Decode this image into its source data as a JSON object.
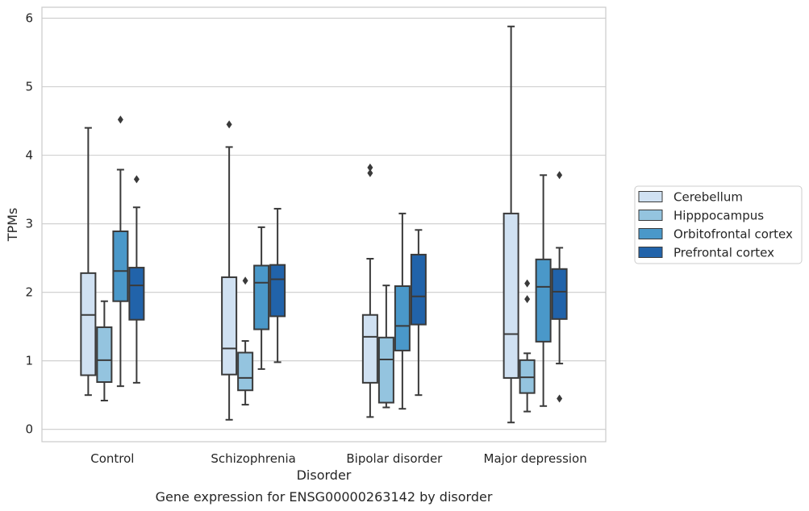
{
  "caption": "Gene expression for ENSG00000263142 by disorder",
  "chart_data": {
    "type": "boxplot",
    "xlabel": "Disorder",
    "ylabel": "TPMs",
    "categories": [
      "Control",
      "Schizophrenia",
      "Bipolar disorder",
      "Major depression"
    ],
    "ylim": [
      -0.18,
      6.16
    ],
    "yticks": [
      "0",
      "1",
      "2",
      "3",
      "4",
      "5",
      "6"
    ],
    "grid": "horizontal",
    "legend_position": "right",
    "series": [
      {
        "name": "Cerebellum",
        "color": "#d0e1f2",
        "boxes": [
          {
            "whisker_low": 0.5,
            "q1": 0.79,
            "median": 1.67,
            "q3": 2.28,
            "whisker_high": 4.4,
            "outliers": []
          },
          {
            "whisker_low": 0.14,
            "q1": 0.8,
            "median": 1.18,
            "q3": 2.22,
            "whisker_high": 4.12,
            "outliers": [
              4.45
            ]
          },
          {
            "whisker_low": 0.18,
            "q1": 0.68,
            "median": 1.35,
            "q3": 1.67,
            "whisker_high": 2.49,
            "outliers": [
              3.74,
              3.82
            ]
          },
          {
            "whisker_low": 0.1,
            "q1": 0.75,
            "median": 1.39,
            "q3": 3.15,
            "whisker_high": 5.88,
            "outliers": []
          }
        ]
      },
      {
        "name": "Hipppocampus",
        "color": "#94c4df",
        "boxes": [
          {
            "whisker_low": 0.42,
            "q1": 0.69,
            "median": 1.01,
            "q3": 1.49,
            "whisker_high": 1.87,
            "outliers": []
          },
          {
            "whisker_low": 0.36,
            "q1": 0.57,
            "median": 0.75,
            "q3": 1.12,
            "whisker_high": 1.29,
            "outliers": [
              2.17
            ]
          },
          {
            "whisker_low": 0.32,
            "q1": 0.39,
            "median": 1.02,
            "q3": 1.34,
            "whisker_high": 2.1,
            "outliers": []
          },
          {
            "whisker_low": 0.26,
            "q1": 0.53,
            "median": 0.76,
            "q3": 1.01,
            "whisker_high": 1.11,
            "outliers": [
              1.9,
              2.13
            ]
          }
        ]
      },
      {
        "name": "Orbitofrontal cortex",
        "color": "#4a98c9",
        "boxes": [
          {
            "whisker_low": 0.63,
            "q1": 1.87,
            "median": 2.31,
            "q3": 2.89,
            "whisker_high": 3.79,
            "outliers": [
              4.52
            ]
          },
          {
            "whisker_low": 0.88,
            "q1": 1.46,
            "median": 2.14,
            "q3": 2.39,
            "whisker_high": 2.95,
            "outliers": []
          },
          {
            "whisker_low": 0.3,
            "q1": 1.15,
            "median": 1.51,
            "q3": 2.09,
            "whisker_high": 3.15,
            "outliers": []
          },
          {
            "whisker_low": 0.34,
            "q1": 1.28,
            "median": 2.08,
            "q3": 2.48,
            "whisker_high": 3.71,
            "outliers": []
          }
        ]
      },
      {
        "name": "Prefrontal cortex",
        "color": "#2163aa",
        "boxes": [
          {
            "whisker_low": 0.68,
            "q1": 1.6,
            "median": 2.1,
            "q3": 2.36,
            "whisker_high": 3.24,
            "outliers": [
              3.65
            ]
          },
          {
            "whisker_low": 0.98,
            "q1": 1.65,
            "median": 2.19,
            "q3": 2.4,
            "whisker_high": 3.22,
            "outliers": []
          },
          {
            "whisker_low": 0.5,
            "q1": 1.53,
            "median": 1.94,
            "q3": 2.55,
            "whisker_high": 2.91,
            "outliers": []
          },
          {
            "whisker_low": 0.96,
            "q1": 1.61,
            "median": 2.01,
            "q3": 2.34,
            "whisker_high": 2.65,
            "outliers": [
              0.45,
              3.71
            ]
          }
        ]
      }
    ]
  }
}
